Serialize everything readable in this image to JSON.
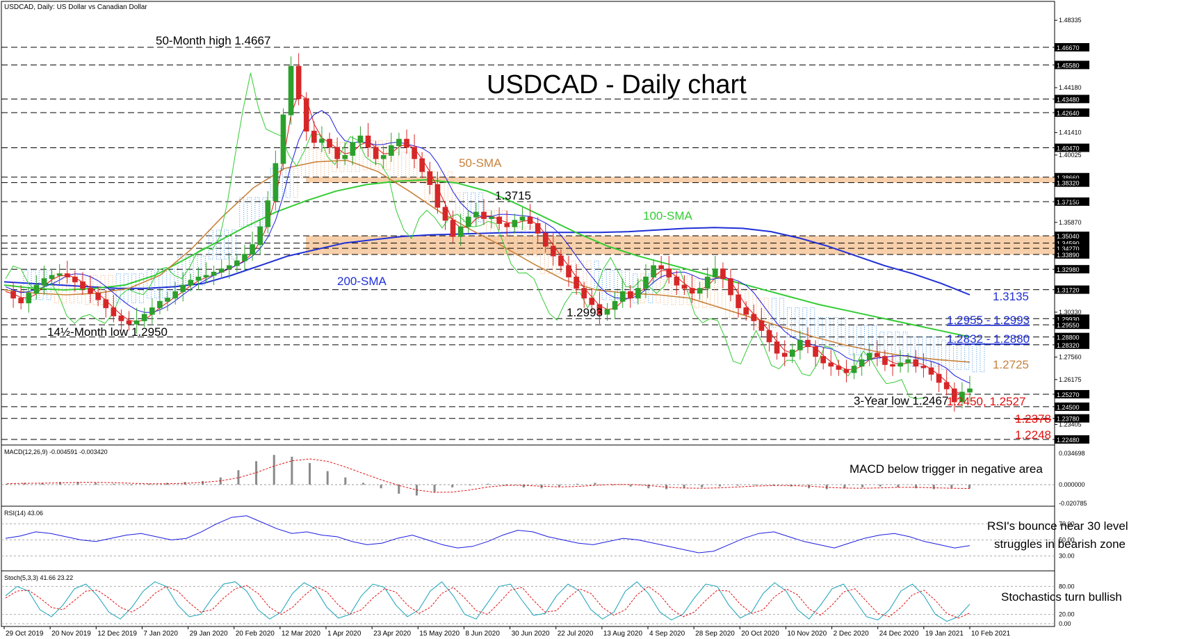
{
  "header": {
    "symbol_line": "USDCAD, Daily:  US Dollar vs Canadian Dollar",
    "title": "USDCAD - Daily chart"
  },
  "colors": {
    "candle_up": "#2ca02c",
    "candle_down": "#d62728",
    "sma50": "#c8823c",
    "sma100": "#33cc33",
    "sma200": "#1f2fd6",
    "tenkan": "#e01010",
    "kijun": "#1a1ae0",
    "chikou": "#33cc33",
    "cloud_bull": "#f0a060",
    "cloud_bear": "#3b8fe0",
    "zone": "#f6c89c",
    "label_red": "#e01010",
    "label_blue": "#1f2fd6",
    "label_orange": "#c8823c",
    "label_green": "#33cc33"
  },
  "chart_data": [
    {
      "type": "candlestick",
      "panel": "price",
      "title": "USDCAD - Daily chart",
      "x_ticks": [
        "29 Oct 2019",
        "20 Nov 2019",
        "12 Dec 2019",
        "7 Jan 2020",
        "29 Jan 2020",
        "20 Feb 2020",
        "12 Mar 2020",
        "1 Apr 2020",
        "23 Apr 2020",
        "15 May 2020",
        "8 Jun 2020",
        "30 Jun 2020",
        "22 Jul 2020",
        "13 Aug 2020",
        "4 Sep 2020",
        "28 Sep 2020",
        "20 Oct 2020",
        "10 Nov 2020",
        "2 Dec 2020",
        "24 Dec 2020",
        "19 Jan 2021",
        "10 Feb 2021"
      ],
      "ylim": [
        1.2248,
        1.4667
      ],
      "y_scale_ticks": [
        "1.48335",
        "1.44180",
        "1.41410",
        "1.40025",
        "1.37255",
        "1.35870",
        "1.30330",
        "1.27560",
        "1.26175",
        "1.23405"
      ],
      "level_lines": [
        "1.46670",
        "1.45580",
        "1.43480",
        "1.42640",
        "1.40470",
        "1.38660",
        "1.38320",
        "1.37150",
        "1.35040",
        "1.34590",
        "1.34270",
        "1.33890",
        "1.32980",
        "1.31720",
        "1.29930",
        "1.29550",
        "1.28800",
        "1.28320",
        "1.25270",
        "1.24500",
        "1.23780",
        "1.22480"
      ],
      "close_series": [
        1.316,
        1.312,
        1.309,
        1.315,
        1.32,
        1.324,
        1.326,
        1.327,
        1.325,
        1.322,
        1.318,
        1.315,
        1.311,
        1.306,
        1.301,
        1.298,
        1.296,
        1.298,
        1.302,
        1.306,
        1.31,
        1.312,
        1.316,
        1.32,
        1.323,
        1.325,
        1.326,
        1.328,
        1.33,
        1.332,
        1.335,
        1.339,
        1.345,
        1.356,
        1.372,
        1.395,
        1.425,
        1.455,
        1.435,
        1.415,
        1.408,
        1.41,
        1.405,
        1.398,
        1.4,
        1.408,
        1.412,
        1.405,
        1.398,
        1.4,
        1.406,
        1.41,
        1.405,
        1.398,
        1.39,
        1.382,
        1.368,
        1.36,
        1.35,
        1.356,
        1.362,
        1.365,
        1.361,
        1.362,
        1.358,
        1.356,
        1.36,
        1.362,
        1.358,
        1.352,
        1.344,
        1.338,
        1.332,
        1.325,
        1.318,
        1.312,
        1.308,
        1.302,
        1.305,
        1.31,
        1.316,
        1.312,
        1.318,
        1.325,
        1.332,
        1.33,
        1.325,
        1.32,
        1.318,
        1.315,
        1.318,
        1.325,
        1.33,
        1.324,
        1.314,
        1.306,
        1.302,
        1.298,
        1.292,
        1.285,
        1.278,
        1.276,
        1.28,
        1.286,
        1.282,
        1.276,
        1.272,
        1.27,
        1.268,
        1.266,
        1.27,
        1.274,
        1.278,
        1.276,
        1.271,
        1.27,
        1.272,
        1.274,
        1.27,
        1.269,
        1.265,
        1.26,
        1.256,
        1.248,
        1.254,
        1.256
      ],
      "sma200_series": [
        1.322,
        1.321,
        1.32,
        1.319,
        1.318,
        1.318,
        1.319,
        1.321,
        1.326,
        1.332,
        1.338,
        1.342,
        1.346,
        1.348,
        1.35,
        1.351,
        1.3515,
        1.352,
        1.3525,
        1.3525,
        1.3525,
        1.3525,
        1.353,
        1.354,
        1.355,
        1.3555,
        1.355,
        1.353,
        1.349,
        1.344,
        1.338,
        1.332,
        1.327,
        1.321,
        1.314
      ],
      "sma100_series": [
        1.32,
        1.318,
        1.317,
        1.318,
        1.32,
        1.326,
        1.336,
        1.346,
        1.356,
        1.365,
        1.372,
        1.378,
        1.382,
        1.384,
        1.385,
        1.383,
        1.378,
        1.37,
        1.361,
        1.352,
        1.344,
        1.338,
        1.333,
        1.328,
        1.323,
        1.318,
        1.313,
        1.308,
        1.304,
        1.3,
        1.296,
        1.292,
        1.288
      ],
      "sma50_series": [
        1.317,
        1.315,
        1.314,
        1.315,
        1.318,
        1.326,
        1.342,
        1.362,
        1.38,
        1.392,
        1.396,
        1.397,
        1.39,
        1.378,
        1.365,
        1.354,
        1.344,
        1.333,
        1.323,
        1.317,
        1.315,
        1.314,
        1.312,
        1.306,
        1.3,
        1.294,
        1.288,
        1.283,
        1.279,
        1.276,
        1.274,
        1.2725
      ],
      "annotations": [
        "50-Month high 1.4667",
        "14½-Month low 1.2950",
        "1.3715",
        "1.2993",
        "3-Year low 1.2467",
        "50-SMA",
        "100-SMA",
        "200-SMA"
      ],
      "right_labels": [
        {
          "text": "1.3135",
          "color": "blue"
        },
        {
          "text": "1.2955 - 1.2993",
          "color": "blue"
        },
        {
          "text": "1.2832 - 1.2880",
          "color": "blue"
        },
        {
          "text": "1.2725",
          "color": "orange"
        },
        {
          "text": "1.2450, 1.2527",
          "color": "red"
        },
        {
          "text": "1.2378",
          "color": "red"
        },
        {
          "text": "1.2248",
          "color": "red"
        }
      ],
      "zones": [
        [
          1.3832,
          1.3866
        ],
        [
          1.3389,
          1.3504
        ]
      ]
    },
    {
      "type": "macd",
      "panel": "macd",
      "legend": "MACD(12,26,9) -0.004591 -0.003420",
      "y_ticks": [
        "0.034698",
        "0.000000",
        "-0.020785"
      ],
      "ylim": [
        -0.020785,
        0.034698
      ],
      "histogram": [
        0.001,
        0.002,
        0.002,
        0.003,
        0.003,
        0.002,
        0.001,
        0.0,
        0.001,
        0.002,
        0.003,
        0.004,
        0.008,
        0.016,
        0.026,
        0.033,
        0.031,
        0.024,
        0.015,
        0.008,
        0.002,
        -0.004,
        -0.01,
        -0.012,
        -0.008,
        -0.003,
        0.0,
        0.001,
        -0.001,
        -0.003,
        -0.004,
        -0.002,
        0.001,
        0.002,
        0.0,
        -0.002,
        -0.004,
        -0.005,
        -0.004,
        -0.003,
        -0.002,
        -0.001,
        0.0,
        -0.001,
        -0.002,
        -0.004,
        -0.005,
        -0.004,
        -0.003,
        -0.002,
        -0.003,
        -0.004,
        -0.005,
        -0.004,
        -0.004
      ],
      "annotation": "MACD below trigger in negative area"
    },
    {
      "type": "line",
      "panel": "rsi",
      "legend": "RSI(14) 43.06",
      "y_ticks": [
        "70.00",
        "50.00",
        "30.00"
      ],
      "ylim": [
        15,
        85
      ],
      "values": [
        52,
        55,
        60,
        58,
        54,
        50,
        48,
        52,
        56,
        58,
        54,
        50,
        52,
        60,
        70,
        78,
        80,
        72,
        64,
        58,
        60,
        56,
        54,
        48,
        44,
        46,
        52,
        56,
        50,
        44,
        40,
        42,
        48,
        56,
        62,
        60,
        54,
        50,
        46,
        44,
        48,
        52,
        50,
        46,
        42,
        38,
        34,
        36,
        44,
        52,
        58,
        60,
        54,
        48,
        44,
        40,
        46,
        52,
        56,
        58,
        54,
        48,
        44,
        40,
        43
      ],
      "annotation_lines": [
        "RSI's bounce near 30 level",
        "struggles in bearish zone"
      ]
    },
    {
      "type": "line",
      "panel": "stochastics",
      "legend": "Stoch(5,3,3) 41.66 23.22",
      "y_ticks": [
        "80.00",
        "20.00",
        "0.00"
      ],
      "ylim": [
        0,
        100
      ],
      "k_values": [
        60,
        80,
        70,
        30,
        15,
        40,
        75,
        85,
        60,
        25,
        10,
        35,
        70,
        90,
        80,
        40,
        15,
        20,
        55,
        85,
        90,
        70,
        30,
        10,
        25,
        65,
        88,
        75,
        35,
        12,
        20,
        60,
        85,
        78,
        40,
        15,
        30,
        70,
        90,
        60,
        20,
        10,
        45,
        80,
        85,
        50,
        18,
        22,
        60,
        85,
        70,
        30,
        10,
        25,
        70,
        90,
        65,
        25,
        8,
        20,
        55,
        85,
        80,
        40,
        12,
        25,
        65,
        88,
        70,
        30,
        10,
        40,
        75,
        85,
        50,
        15,
        8,
        30,
        70,
        85,
        60,
        20,
        5,
        15,
        42
      ],
      "d_values": [
        55,
        70,
        72,
        55,
        35,
        30,
        50,
        70,
        72,
        55,
        35,
        25,
        40,
        65,
        80,
        70,
        45,
        25,
        30,
        55,
        75,
        82,
        65,
        35,
        20,
        35,
        60,
        80,
        68,
        40,
        20,
        30,
        55,
        75,
        68,
        40,
        22,
        35,
        65,
        78,
        55,
        28,
        20,
        45,
        72,
        78,
        50,
        25,
        28,
        55,
        75,
        65,
        35,
        18,
        30,
        62,
        80,
        62,
        32,
        15,
        25,
        50,
        72,
        70,
        42,
        22,
        30,
        58,
        75,
        62,
        32,
        18,
        40,
        68,
        75,
        48,
        22,
        15,
        35,
        62,
        72,
        50,
        22,
        12,
        23
      ],
      "annotation": "Stochastics turn bullish"
    }
  ]
}
